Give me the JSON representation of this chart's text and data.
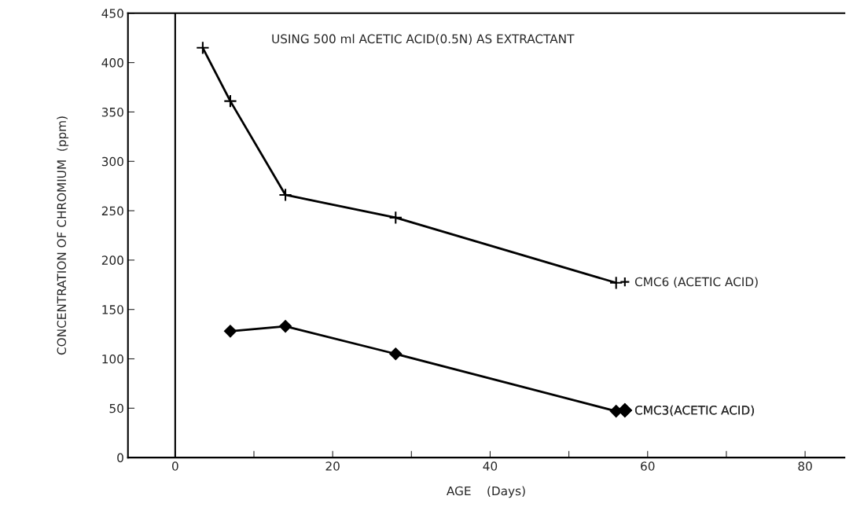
{
  "chart_data": {
    "type": "line",
    "xlabel": "AGE    (Days)",
    "ylabel": "CONCENTRATION OF CHROMIUM  (ppm)",
    "annotations": [
      "USING 500 ml ACETIC ACID(0.5N) AS EXTRACTANT"
    ],
    "series": [
      {
        "name": "CMC6 (ACETIC ACID)",
        "color": "#000000",
        "marker": "cross",
        "x": [
          3.5,
          7,
          14,
          28,
          56
        ],
        "values": [
          415,
          361,
          266,
          243,
          177
        ]
      },
      {
        "name": "CMC3(ACETIC ACID)",
        "color": "#000000",
        "marker": "diamond",
        "x": [
          7,
          14,
          28,
          56
        ],
        "values": [
          128,
          133,
          105,
          47
        ]
      }
    ],
    "xlim": [
      -6,
      85
    ],
    "ylim": [
      0,
      450
    ],
    "xticks": [
      0,
      {
        "value": 10,
        "label": null
      },
      20,
      {
        "value": 30,
        "label": null
      },
      40,
      {
        "value": 50,
        "label": null
      },
      60,
      {
        "value": 70,
        "label": null
      },
      80
    ],
    "yticks": [
      0,
      50,
      100,
      150,
      200,
      250,
      300,
      350,
      400,
      450
    ],
    "ref_lines": [
      {
        "axis": "x",
        "value": 0,
        "color": "#000000"
      }
    ],
    "grid": false,
    "legend": "right",
    "line_style": "solid"
  }
}
